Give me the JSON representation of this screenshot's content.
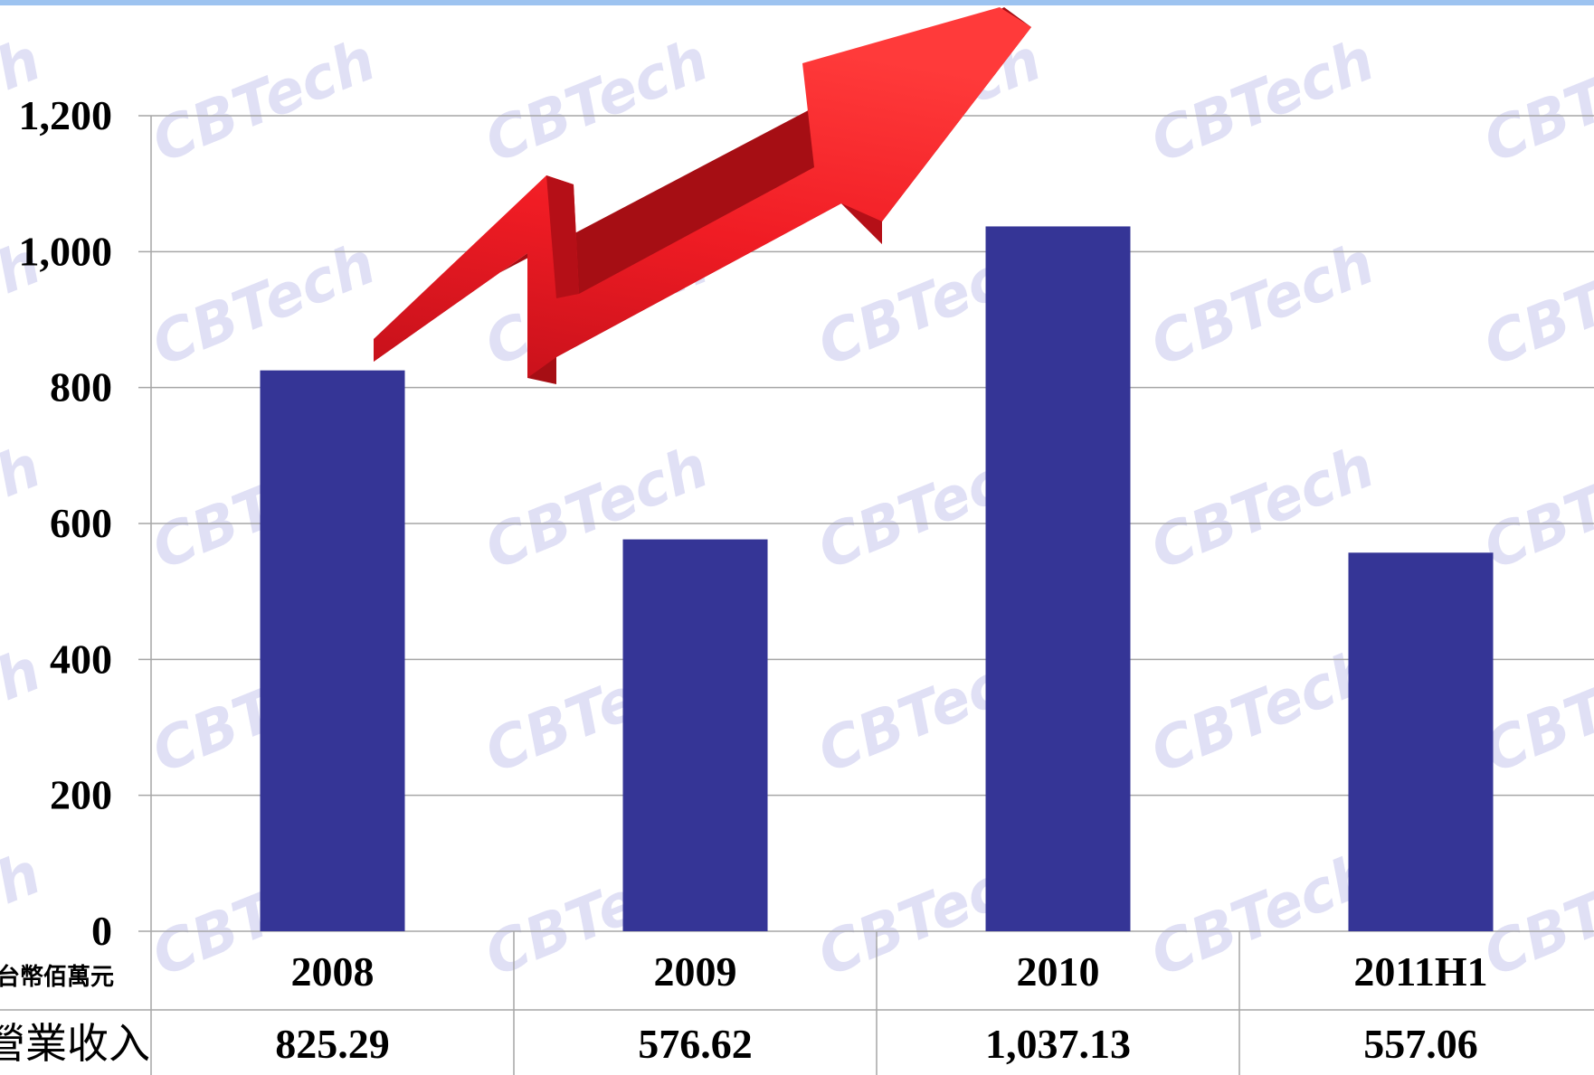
{
  "watermark": "CBTech",
  "colors": {
    "bar": "#353596",
    "arrow": "#ee1c24",
    "grid": "#a6a6a6",
    "top_band": "#9dc3f0"
  },
  "chart_data": {
    "type": "bar",
    "categories": [
      "2008",
      "2009",
      "2010",
      "2011H1"
    ],
    "values": [
      825.29,
      576.62,
      1037.13,
      557.06
    ],
    "value_labels": [
      "825.29",
      "576.62",
      "1,037.13",
      "557.06"
    ],
    "y_ticks": [
      "0",
      "200",
      "400",
      "600",
      "800",
      "1,000",
      "1,200"
    ],
    "ylim": [
      0,
      1200
    ],
    "grid": true,
    "unit_label": "台幣佰萬元",
    "row_label": "營業收入",
    "decoration": "red-upward-arrow"
  }
}
